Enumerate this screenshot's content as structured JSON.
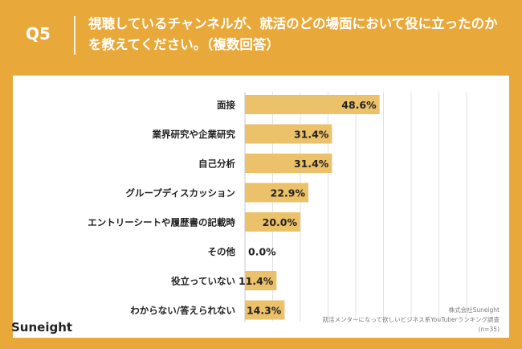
{
  "header": {
    "question_number": "Q5",
    "question_text": "視聴しているチャンネルが、就活のどの場面において役に立ったのかを教えてください。（複数回答）"
  },
  "footer": {
    "brand": "Suneight",
    "source_line1": "株式会社Suneight",
    "source_line2": "就活メンターになって欲しいビジネス系YouTuberランキング調査",
    "source_line3": "(n=35)"
  },
  "colors": {
    "background": "#E8A93A",
    "bar": "#EBC169",
    "grid": "#E2E2E2",
    "text": "#222222"
  },
  "chart_data": {
    "type": "bar",
    "orientation": "horizontal",
    "categories": [
      "面接",
      "業界研究や企業研究",
      "自己分析",
      "グループディスカッション",
      "エントリーシートや履歴書の記載時",
      "その他",
      "役立っていない",
      "わからない/答えられない"
    ],
    "values": [
      48.6,
      31.4,
      31.4,
      22.9,
      20.0,
      0.0,
      11.4,
      14.3
    ],
    "value_labels": [
      "48.6%",
      "31.4%",
      "31.4%",
      "22.9%",
      "20.0%",
      "0.0%",
      "11.4%",
      "14.3%"
    ],
    "xlim": [
      0,
      80
    ],
    "grid": true,
    "title": "",
    "xlabel": "",
    "ylabel": ""
  }
}
